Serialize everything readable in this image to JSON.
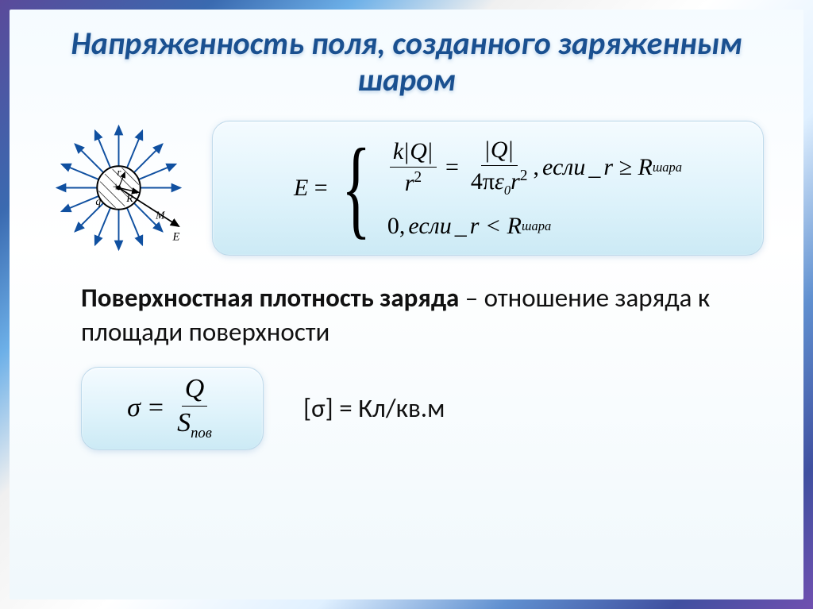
{
  "title": "Напряженность поля, созданного заряженным шаром",
  "diagram": {
    "arrow_count": 16,
    "sphere_radius": 28,
    "arrow_length": 80,
    "center_label": "+",
    "q_label": "q",
    "R_label": "R",
    "r_label": "r",
    "M_label": "M",
    "E_label": "E",
    "arrow_color": "#1050a0",
    "sphere_outline": "#000000",
    "sphere_hatch": "#404040"
  },
  "formula_main": {
    "lhs": "E",
    "case1_frac1_num": "k|Q|",
    "case1_frac1_den_base": "r",
    "case1_frac1_den_exp": "2",
    "case1_eq": "=",
    "case1_frac2_num": "|Q|",
    "case1_frac2_den_4pi": "4π",
    "case1_frac2_den_eps": "ε",
    "case1_frac2_den_eps_sub": "0",
    "case1_frac2_den_r": "r",
    "case1_frac2_den_r_exp": "2",
    "case1_cond_comma": ",",
    "case1_cond_word": "если",
    "case1_cond_rel": "r ≥ R",
    "case1_cond_sub": "шара",
    "case2_val": "0",
    "case2_comma": ",",
    "case2_word": "если",
    "case2_rel": "r < R",
    "case2_sub": "шара"
  },
  "body_bold": "Поверхностная плотность заряда",
  "body_rest1": " – отношение заряда к площади поверхности",
  "formula_sigma": {
    "lhs": "σ",
    "eq": "=",
    "num": "Q",
    "den_S": "S",
    "den_sub": "пов"
  },
  "unit_text": "[σ] = Кл/кв.м",
  "colors": {
    "title": "#1a5090",
    "box_bg_top": "#f4fbff",
    "box_bg_bottom": "#cceaf5",
    "text": "#111111",
    "math": "#000000"
  },
  "fontsize": {
    "title": 40,
    "body": 33,
    "math": 30
  }
}
